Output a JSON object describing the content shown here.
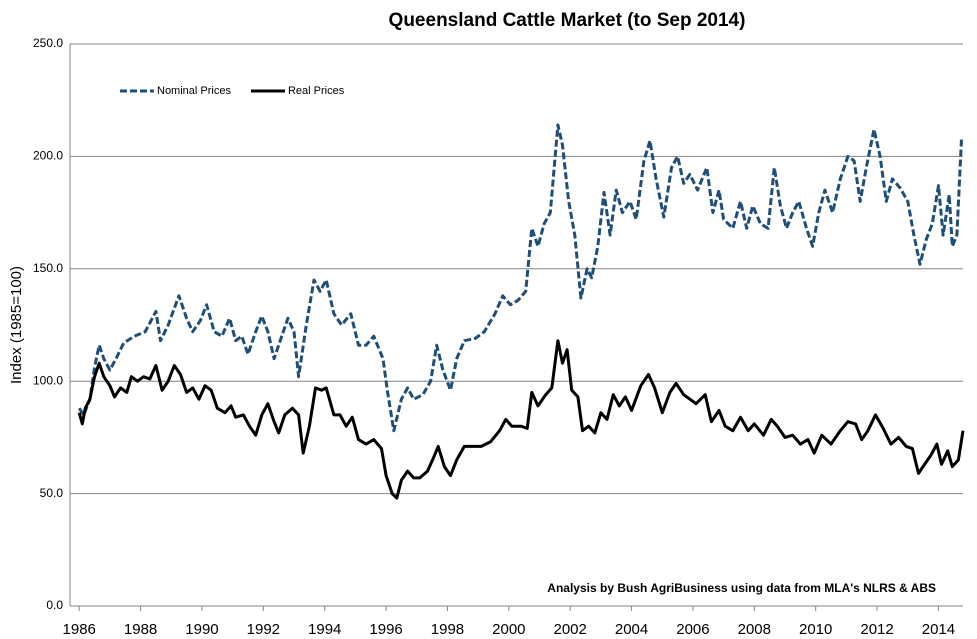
{
  "chart_data": {
    "type": "line",
    "title": "Queensland Cattle Market (to Sep 2014)",
    "y_label": "Index (1985=100)",
    "annotation": "Analysis by Bush AgriBusiness using data from MLA's NLRS & ABS",
    "xlim": [
      1985.7,
      2014.8
    ],
    "xticks": [
      1986,
      1988,
      1990,
      1992,
      1994,
      1996,
      1998,
      2000,
      2002,
      2004,
      2006,
      2008,
      2010,
      2012,
      2014
    ],
    "ylim": [
      0,
      250
    ],
    "yticks": [
      {
        "value": 0,
        "label": "0.0"
      },
      {
        "value": 50,
        "label": "50.0"
      },
      {
        "value": 100,
        "label": "100.0"
      },
      {
        "value": 150,
        "label": "150.0"
      },
      {
        "value": 200,
        "label": "200.0"
      },
      {
        "value": 250,
        "label": "250.0"
      }
    ],
    "grid": true,
    "legend": "top-left",
    "series": [
      {
        "name": "Nominal Prices",
        "color": "#1f4e79",
        "dashed": true,
        "x": [
          1986.0,
          1986.15,
          1986.35,
          1986.5,
          1986.65,
          1986.8,
          1987.0,
          1987.2,
          1987.45,
          1987.8,
          1988.15,
          1988.5,
          1988.65,
          1988.9,
          1989.25,
          1989.5,
          1989.7,
          1989.95,
          1990.15,
          1990.4,
          1990.65,
          1990.9,
          1991.1,
          1991.3,
          1991.5,
          1991.75,
          1991.95,
          1992.15,
          1992.35,
          1992.55,
          1992.8,
          1993.0,
          1993.15,
          1993.4,
          1993.65,
          1993.85,
          1994.05,
          1994.3,
          1994.55,
          1994.85,
          1995.1,
          1995.35,
          1995.6,
          1995.9,
          1996.05,
          1996.25,
          1996.5,
          1996.7,
          1996.9,
          1997.2,
          1997.45,
          1997.65,
          1997.85,
          1998.1,
          1998.3,
          1998.55,
          1998.9,
          1999.2,
          1999.55,
          1999.8,
          2000.05,
          2000.3,
          2000.55,
          2000.75,
          2000.95,
          2001.15,
          2001.35,
          2001.6,
          2001.75,
          2001.95,
          2002.15,
          2002.35,
          2002.55,
          2002.7,
          2002.9,
          2003.1,
          2003.3,
          2003.5,
          2003.7,
          2003.95,
          2004.15,
          2004.4,
          2004.6,
          2004.8,
          2005.05,
          2005.3,
          2005.5,
          2005.7,
          2005.9,
          2006.15,
          2006.45,
          2006.65,
          2006.85,
          2007.0,
          2007.3,
          2007.55,
          2007.75,
          2007.95,
          2008.2,
          2008.45,
          2008.65,
          2008.85,
          2009.05,
          2009.25,
          2009.45,
          2009.7,
          2009.9,
          2010.1,
          2010.3,
          2010.55,
          2010.8,
          2011.05,
          2011.25,
          2011.45,
          2011.65,
          2011.9,
          2012.1,
          2012.3,
          2012.5,
          2012.75,
          2013.0,
          2013.2,
          2013.4,
          2013.6,
          2013.8,
          2014.0,
          2014.15,
          2014.35,
          2014.45,
          2014.6,
          2014.75
        ],
        "values": [
          88,
          85,
          92,
          106,
          116,
          110,
          105,
          110,
          117,
          120,
          122,
          131,
          118,
          125,
          138,
          128,
          122,
          127,
          134,
          122,
          120,
          128,
          118,
          120,
          112,
          122,
          129,
          122,
          110,
          118,
          128,
          122,
          102,
          125,
          145,
          140,
          145,
          130,
          125,
          130,
          116,
          116,
          120,
          110,
          95,
          78,
          92,
          97,
          92,
          94,
          100,
          116,
          105,
          96,
          110,
          118,
          119,
          122,
          130,
          138,
          134,
          136,
          140,
          168,
          160,
          170,
          175,
          214,
          205,
          180,
          165,
          137,
          150,
          146,
          160,
          184,
          165,
          185,
          175,
          180,
          172,
          198,
          207,
          190,
          173,
          195,
          200,
          188,
          192,
          185,
          195,
          175,
          185,
          172,
          168,
          180,
          168,
          178,
          170,
          168,
          195,
          178,
          168,
          175,
          180,
          168,
          160,
          175,
          185,
          175,
          190,
          200,
          198,
          180,
          195,
          212,
          200,
          180,
          190,
          186,
          180,
          165,
          152,
          163,
          170,
          187,
          165,
          183,
          160,
          165,
          208
        ]
      },
      {
        "name": "Real Prices",
        "color": "#000000",
        "dashed": false,
        "x": [
          1986.0,
          1986.1,
          1986.2,
          1986.35,
          1986.5,
          1986.65,
          1986.8,
          1987.0,
          1987.15,
          1987.35,
          1987.55,
          1987.7,
          1987.9,
          1988.1,
          1988.3,
          1988.5,
          1988.7,
          1988.9,
          1989.1,
          1989.3,
          1989.5,
          1989.7,
          1989.9,
          1990.1,
          1990.3,
          1990.5,
          1990.75,
          1990.95,
          1991.1,
          1991.35,
          1991.55,
          1991.75,
          1991.95,
          1992.15,
          1992.35,
          1992.5,
          1992.7,
          1992.95,
          1993.15,
          1993.3,
          1993.5,
          1993.7,
          1993.9,
          1994.05,
          1994.3,
          1994.5,
          1994.7,
          1994.9,
          1995.1,
          1995.35,
          1995.6,
          1995.85,
          1996.0,
          1996.2,
          1996.35,
          1996.5,
          1996.7,
          1996.9,
          1997.1,
          1997.35,
          1997.55,
          1997.7,
          1997.9,
          1998.1,
          1998.3,
          1998.55,
          1998.8,
          1999.1,
          1999.4,
          1999.7,
          1999.9,
          2000.1,
          2000.4,
          2000.6,
          2000.75,
          2000.95,
          2001.2,
          2001.4,
          2001.6,
          2001.75,
          2001.9,
          2002.05,
          2002.25,
          2002.4,
          2002.6,
          2002.8,
          2003.0,
          2003.2,
          2003.4,
          2003.6,
          2003.8,
          2004.0,
          2004.3,
          2004.55,
          2004.75,
          2005.0,
          2005.25,
          2005.45,
          2005.7,
          2005.9,
          2006.1,
          2006.4,
          2006.6,
          2006.85,
          2007.05,
          2007.3,
          2007.55,
          2007.8,
          2008.0,
          2008.3,
          2008.55,
          2008.75,
          2009.0,
          2009.25,
          2009.5,
          2009.75,
          2009.95,
          2010.2,
          2010.5,
          2010.8,
          2011.05,
          2011.3,
          2011.5,
          2011.7,
          2011.95,
          2012.2,
          2012.45,
          2012.7,
          2012.95,
          2013.15,
          2013.35,
          2013.55,
          2013.75,
          2013.95,
          2014.1,
          2014.3,
          2014.45,
          2014.65,
          2014.8
        ],
        "values": [
          86,
          81,
          88,
          92,
          102,
          108,
          102,
          98,
          93,
          97,
          95,
          102,
          100,
          102,
          101,
          107,
          96,
          100,
          107,
          103,
          95,
          97,
          92,
          98,
          96,
          88,
          86,
          89,
          84,
          85,
          80,
          76,
          85,
          90,
          82,
          77,
          85,
          88,
          85,
          68,
          80,
          97,
          96,
          97,
          85,
          85,
          80,
          84,
          74,
          72,
          74,
          70,
          58,
          50,
          48,
          56,
          60,
          57,
          57,
          60,
          66,
          71,
          62,
          58,
          65,
          71,
          71,
          71,
          73,
          78,
          83,
          80,
          80,
          79,
          95,
          89,
          94,
          97,
          118,
          108,
          114,
          96,
          93,
          78,
          80,
          77,
          86,
          83,
          94,
          89,
          93,
          87,
          98,
          103,
          97,
          86,
          95,
          99,
          94,
          92,
          90,
          94,
          82,
          87,
          80,
          78,
          84,
          78,
          81,
          76,
          83,
          80,
          75,
          76,
          72,
          74,
          68,
          76,
          72,
          78,
          82,
          81,
          74,
          78,
          85,
          79,
          72,
          75,
          71,
          70,
          59,
          63,
          67,
          72,
          63,
          69,
          62,
          65,
          78
        ]
      }
    ]
  }
}
